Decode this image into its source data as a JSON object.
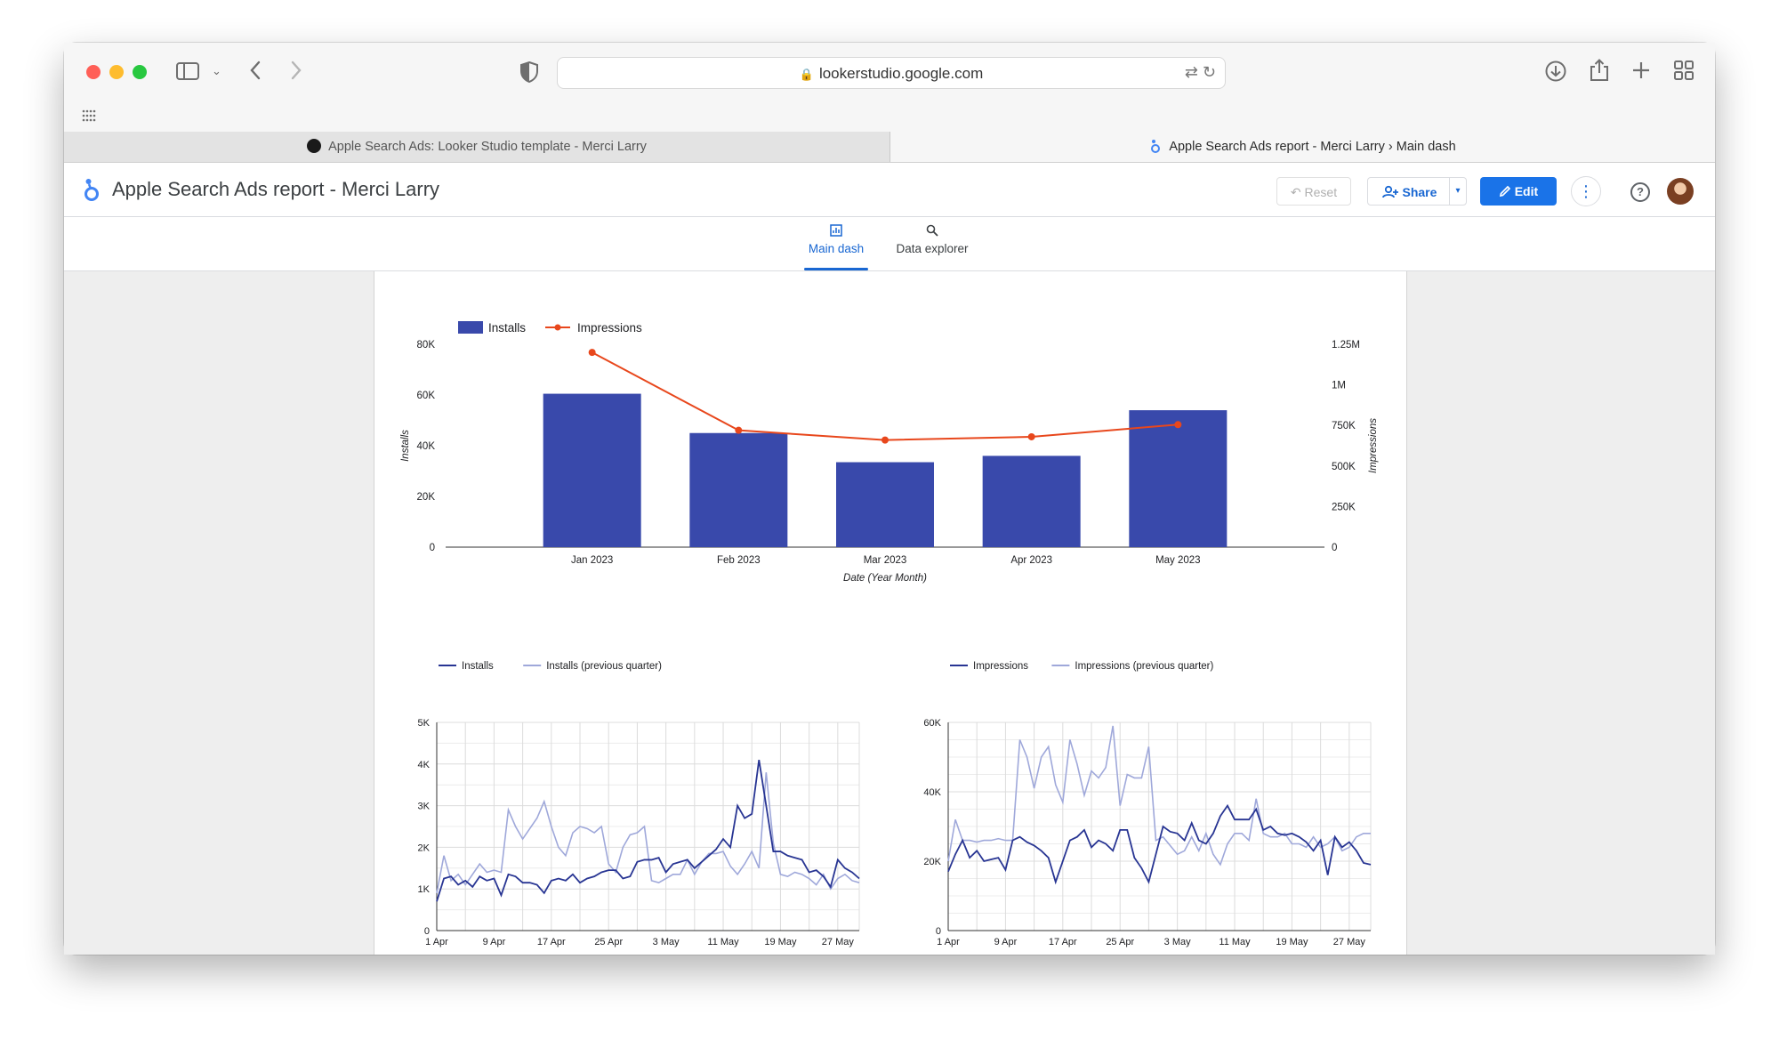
{
  "browser": {
    "url": "lookerstudio.google.com",
    "tabs": [
      {
        "label": "Apple Search Ads: Looker Studio template - Merci Larry"
      },
      {
        "label": "Apple Search Ads report - Merci Larry › Main dash"
      }
    ]
  },
  "app": {
    "title": "Apple Search Ads report - Merci Larry",
    "reset_label": "Reset",
    "share_label": "Share",
    "edit_label": "Edit"
  },
  "pages": {
    "main": "Main dash",
    "explorer": "Data explorer"
  },
  "colors": {
    "installs": "#3949ab",
    "impressions_line": "#e8471c",
    "series_current": "#283593",
    "series_previous": "#9fa8da",
    "accent": "#1a73e8"
  },
  "chart_data": [
    {
      "type": "bar",
      "combo": "bar + line (dual axis)",
      "categories": [
        "Jan 2023",
        "Feb 2023",
        "Mar 2023",
        "Apr 2023",
        "May 2023"
      ],
      "series": [
        {
          "name": "Installs",
          "type": "bar",
          "axis": "left",
          "values": [
            60500,
            45000,
            33500,
            36000,
            54000
          ]
        },
        {
          "name": "Impressions",
          "type": "line",
          "axis": "right",
          "values": [
            1200000,
            720000,
            660000,
            680000,
            755000
          ]
        }
      ],
      "xlabel": "Date (Year Month)",
      "ylabel": "Installs",
      "y2label": "Impressions",
      "ylim": [
        0,
        80000
      ],
      "y2lim": [
        0,
        1250000
      ],
      "yticks": [
        "0",
        "20K",
        "40K",
        "60K",
        "80K"
      ],
      "y2ticks": [
        "0",
        "250K",
        "500K",
        "750K",
        "1M",
        "1.25M"
      ],
      "legend": "top-left",
      "grid": false
    },
    {
      "type": "line",
      "xticks": [
        "1 Apr",
        "9 Apr",
        "17 Apr",
        "25 Apr",
        "3 May",
        "11 May",
        "19 May",
        "27 May"
      ],
      "x_start": "1 Apr",
      "x_end": "29 May",
      "ylim": [
        0,
        5000
      ],
      "yticks": [
        "0",
        "1K",
        "2K",
        "3K",
        "4K",
        "5K"
      ],
      "legend": "top-left",
      "grid": true,
      "series": [
        {
          "name": "Installs",
          "values": [
            700,
            1250,
            1300,
            1100,
            1200,
            1050,
            1300,
            1200,
            1250,
            850,
            1350,
            1300,
            1150,
            1150,
            1100,
            900,
            1200,
            1250,
            1200,
            1350,
            1150,
            1250,
            1300,
            1400,
            1450,
            1450,
            1250,
            1300,
            1650,
            1700,
            1700,
            1750,
            1400,
            1600,
            1650,
            1700,
            1500,
            1650,
            1800,
            1950,
            2200,
            2000,
            3000,
            2700,
            2800,
            4100,
            3000,
            1900,
            1900,
            1800,
            1750,
            1700,
            1400,
            1450,
            1300,
            1050,
            1700,
            1500,
            1400,
            1250
          ]
        },
        {
          "name": "Installs (previous quarter)",
          "values": [
            900,
            1800,
            1200,
            1350,
            1100,
            1350,
            1600,
            1400,
            1450,
            1400,
            2900,
            2500,
            2200,
            2450,
            2700,
            3100,
            2500,
            2000,
            1800,
            2350,
            2500,
            2450,
            2350,
            2500,
            1600,
            1400,
            2000,
            2300,
            2350,
            2500,
            1200,
            1150,
            1250,
            1350,
            1350,
            1700,
            1350,
            1650,
            1850,
            1850,
            1900,
            1550,
            1350,
            1600,
            1900,
            1500,
            3800,
            2100,
            1350,
            1300,
            1400,
            1350,
            1250,
            1100,
            1350,
            1000,
            1250,
            1350,
            1200,
            1150
          ]
        }
      ]
    },
    {
      "type": "line",
      "xticks": [
        "1 Apr",
        "9 Apr",
        "17 Apr",
        "25 Apr",
        "3 May",
        "11 May",
        "19 May",
        "27 May"
      ],
      "x_start": "1 Apr",
      "x_end": "29 May",
      "ylim": [
        0,
        60000
      ],
      "yticks": [
        "0",
        "20K",
        "40K",
        "60K"
      ],
      "legend": "top-left",
      "grid": true,
      "series": [
        {
          "name": "Impressions",
          "values": [
            17000,
            22000,
            26000,
            21000,
            23000,
            20000,
            20500,
            21000,
            17500,
            26000,
            27000,
            25500,
            24500,
            23000,
            21000,
            14000,
            20000,
            26000,
            27000,
            29000,
            24000,
            26000,
            25000,
            23000,
            29000,
            29000,
            21000,
            18000,
            14000,
            22000,
            30000,
            28500,
            28000,
            26000,
            31000,
            26000,
            25000,
            28000,
            33000,
            36000,
            32000,
            32000,
            32000,
            35000,
            29000,
            30000,
            28000,
            27500,
            28000,
            27000,
            25500,
            23000,
            26000,
            16000,
            27000,
            24000,
            25500,
            23000,
            19500,
            19000
          ]
        },
        {
          "name": "Impressions (previous quarter)",
          "values": [
            20000,
            32000,
            26000,
            26000,
            25500,
            26000,
            26000,
            26500,
            26000,
            26000,
            55000,
            50000,
            41000,
            50000,
            53000,
            42000,
            37000,
            55000,
            48000,
            39000,
            46000,
            44000,
            47000,
            59000,
            36000,
            45000,
            44000,
            44000,
            53000,
            26000,
            27000,
            24500,
            22000,
            23000,
            27000,
            23000,
            28000,
            22000,
            19000,
            25000,
            28000,
            28000,
            26000,
            38000,
            28000,
            27000,
            27000,
            28000,
            25000,
            25000,
            24000,
            27000,
            24000,
            25000,
            27000,
            23000,
            24000,
            27000,
            28000,
            28000
          ]
        }
      ]
    }
  ]
}
